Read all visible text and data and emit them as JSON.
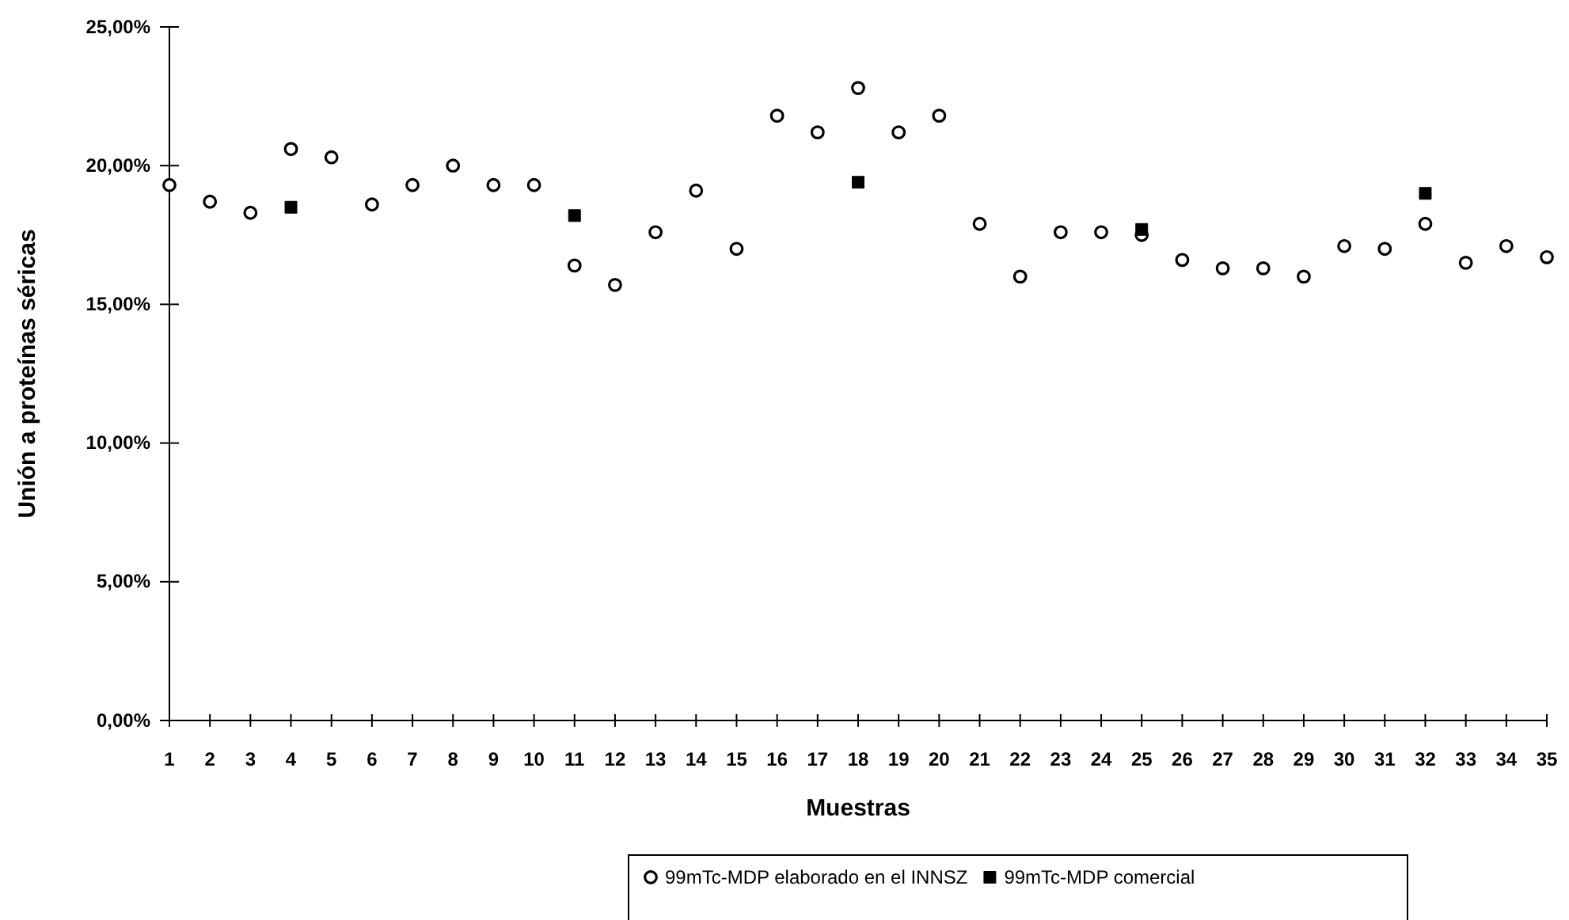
{
  "chart_data": {
    "type": "scatter",
    "xlabel": "Muestras",
    "ylabel": "Unión a proteínas séricas",
    "x": [
      1,
      2,
      3,
      4,
      5,
      6,
      7,
      8,
      9,
      10,
      11,
      12,
      13,
      14,
      15,
      16,
      17,
      18,
      19,
      20,
      21,
      22,
      23,
      24,
      25,
      26,
      27,
      28,
      29,
      30,
      31,
      32,
      33,
      34,
      35
    ],
    "xlim": [
      1,
      35
    ],
    "xticks": [
      1,
      2,
      3,
      4,
      5,
      6,
      7,
      8,
      9,
      10,
      11,
      12,
      13,
      14,
      15,
      16,
      17,
      18,
      19,
      20,
      21,
      22,
      23,
      24,
      25,
      26,
      27,
      28,
      29,
      30,
      31,
      32,
      33,
      34,
      35
    ],
    "ylim": [
      0,
      25
    ],
    "yticks": [
      {
        "value": 0,
        "label": "0,00%"
      },
      {
        "value": 5,
        "label": "5,00%"
      },
      {
        "value": 10,
        "label": "10,00%"
      },
      {
        "value": 15,
        "label": "15,00%"
      },
      {
        "value": 20,
        "label": "20,00%"
      },
      {
        "value": 25,
        "label": "25,00%"
      }
    ],
    "grid": false,
    "legend": "bottom",
    "series": [
      {
        "name": "99mTc-MDP elaborado en el INNSZ",
        "color": "#000000",
        "marker": "circle",
        "values": [
          19.3,
          18.7,
          18.3,
          20.6,
          20.3,
          18.6,
          19.3,
          20.0,
          19.3,
          19.3,
          16.4,
          15.7,
          17.6,
          19.1,
          17.0,
          21.8,
          21.2,
          22.8,
          21.2,
          21.8,
          17.9,
          16.0,
          17.6,
          17.6,
          17.5,
          16.6,
          16.3,
          16.3,
          16.0,
          17.1,
          17.0,
          17.9,
          16.5,
          17.1,
          16.7
        ]
      },
      {
        "name": "99mTc-MDP comercial",
        "color": "#000000",
        "marker": "square",
        "x": [
          4,
          11,
          18,
          25,
          32
        ],
        "values": [
          18.5,
          18.2,
          19.4,
          17.7,
          19.0
        ]
      }
    ]
  }
}
